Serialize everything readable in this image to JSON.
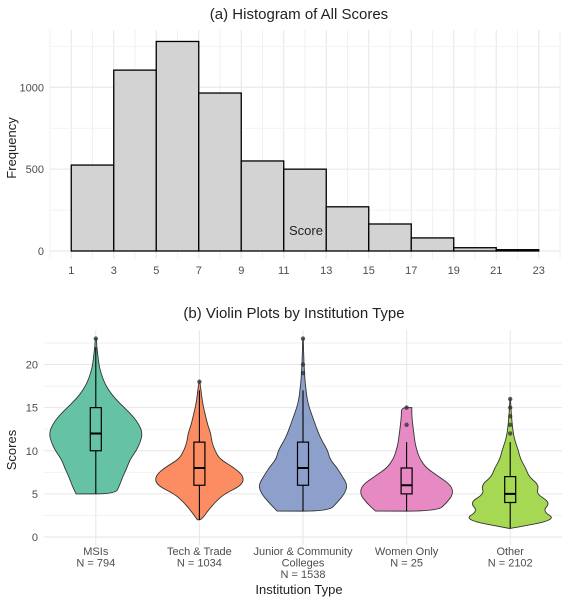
{
  "chart_data": [
    {
      "type": "bar",
      "title": "(a) Histogram of All Scores",
      "xlabel": "Score",
      "ylabel": "Frequency",
      "bin_width": 2,
      "x_ticks": [
        "1",
        "3",
        "5",
        "7",
        "9",
        "11",
        "13",
        "15",
        "17",
        "19",
        "21",
        "23"
      ],
      "y_ticks": [
        "0",
        "500",
        "1000"
      ],
      "ylim": [
        0,
        1350
      ],
      "xlim": [
        0,
        24
      ],
      "bins": [
        {
          "x0": 1,
          "x1": 3,
          "value": 525
        },
        {
          "x0": 3,
          "x1": 5,
          "value": 1105
        },
        {
          "x0": 5,
          "x1": 7,
          "value": 1280
        },
        {
          "x0": 7,
          "x1": 9,
          "value": 965
        },
        {
          "x0": 9,
          "x1": 11,
          "value": 550
        },
        {
          "x0": 11,
          "x1": 13,
          "value": 500
        },
        {
          "x0": 13,
          "x1": 15,
          "value": 270
        },
        {
          "x0": 15,
          "x1": 17,
          "value": 165
        },
        {
          "x0": 17,
          "x1": 19,
          "value": 80
        },
        {
          "x0": 19,
          "x1": 21,
          "value": 20
        },
        {
          "x0": 21,
          "x1": 23,
          "value": 8
        }
      ],
      "fill": "#d3d3d3",
      "stroke": "#000000",
      "grid": true
    },
    {
      "type": "violin",
      "title": "(b) Violin Plots by Institution Type",
      "xlabel": "Institution Type",
      "ylabel": "Scores",
      "y_ticks": [
        "0",
        "5",
        "10",
        "15",
        "20"
      ],
      "ylim": [
        0,
        24
      ],
      "grid": true,
      "categories": [
        {
          "label": [
            "MSIs",
            "N = 794"
          ],
          "color": "#66c2a5",
          "box": {
            "q1": 10,
            "median": 12,
            "q3": 15,
            "whisker_low": 5,
            "whisker_high": 22
          },
          "outliers": [
            23
          ],
          "density": [
            [
              5,
              0.38
            ],
            [
              6,
              0.46
            ],
            [
              7,
              0.52
            ],
            [
              8,
              0.6
            ],
            [
              9,
              0.66
            ],
            [
              10,
              0.78
            ],
            [
              11,
              0.86
            ],
            [
              12,
              0.9
            ],
            [
              13,
              0.84
            ],
            [
              14,
              0.72
            ],
            [
              15,
              0.55
            ],
            [
              16,
              0.38
            ],
            [
              17,
              0.25
            ],
            [
              18,
              0.16
            ],
            [
              19,
              0.1
            ],
            [
              20,
              0.06
            ],
            [
              21,
              0.04
            ],
            [
              22,
              0.02
            ],
            [
              23,
              0.01
            ]
          ]
        },
        {
          "label": [
            "Tech & Trade",
            "N = 1034"
          ],
          "color": "#fc8d62",
          "box": {
            "q1": 6,
            "median": 8,
            "q3": 11,
            "whisker_low": 2,
            "whisker_high": 17
          },
          "outliers": [
            18
          ],
          "density": [
            [
              2,
              0.04
            ],
            [
              3,
              0.16
            ],
            [
              4,
              0.3
            ],
            [
              5,
              0.48
            ],
            [
              6,
              0.82
            ],
            [
              7,
              0.86
            ],
            [
              8,
              0.68
            ],
            [
              9,
              0.4
            ],
            [
              10,
              0.3
            ],
            [
              11,
              0.24
            ],
            [
              12,
              0.22
            ],
            [
              13,
              0.16
            ],
            [
              14,
              0.12
            ],
            [
              15,
              0.08
            ],
            [
              16,
              0.05
            ],
            [
              17,
              0.03
            ],
            [
              18,
              0.01
            ]
          ]
        },
        {
          "label": [
            "Junior & Community",
            "Colleges",
            "N = 1538"
          ],
          "color": "#8da0cb",
          "box": {
            "q1": 6,
            "median": 8,
            "q3": 11,
            "whisker_low": 3,
            "whisker_high": 17
          },
          "outliers": [
            19,
            20,
            23
          ],
          "density": [
            [
              3,
              0.5
            ],
            [
              4,
              0.66
            ],
            [
              5,
              0.8
            ],
            [
              6,
              0.86
            ],
            [
              7,
              0.76
            ],
            [
              8,
              0.66
            ],
            [
              9,
              0.52
            ],
            [
              10,
              0.48
            ],
            [
              11,
              0.38
            ],
            [
              12,
              0.3
            ],
            [
              13,
              0.24
            ],
            [
              14,
              0.18
            ],
            [
              15,
              0.12
            ],
            [
              16,
              0.08
            ],
            [
              17,
              0.06
            ],
            [
              18,
              0.04
            ],
            [
              19,
              0.03
            ],
            [
              20,
              0.02
            ],
            [
              21,
              0.015
            ],
            [
              22,
              0.01
            ],
            [
              23,
              0.005
            ]
          ]
        },
        {
          "label": [
            "Women Only",
            "N = 25"
          ],
          "color": "#e78ac3",
          "box": {
            "q1": 5,
            "median": 6,
            "q3": 8,
            "whisker_low": 3,
            "whisker_high": 11
          },
          "outliers": [
            13,
            15
          ],
          "density": [
            [
              3,
              0.6
            ],
            [
              4,
              0.78
            ],
            [
              5,
              0.9
            ],
            [
              6,
              0.86
            ],
            [
              7,
              0.62
            ],
            [
              8,
              0.38
            ],
            [
              9,
              0.26
            ],
            [
              10,
              0.2
            ],
            [
              11,
              0.16
            ],
            [
              12,
              0.14
            ],
            [
              13,
              0.12
            ],
            [
              14,
              0.1
            ],
            [
              15,
              0.1
            ]
          ]
        },
        {
          "label": [
            "Other",
            "N = 2102"
          ],
          "color": "#a6d854",
          "box": {
            "q1": 4,
            "median": 5,
            "q3": 7,
            "whisker_low": 1,
            "whisker_high": 11
          },
          "outliers": [
            12,
            13,
            14,
            15,
            16
          ],
          "density": [
            [
              1,
              0.02
            ],
            [
              2,
              0.9
            ],
            [
              3,
              0.62
            ],
            [
              4,
              0.78
            ],
            [
              5,
              0.5
            ],
            [
              6,
              0.56
            ],
            [
              7,
              0.36
            ],
            [
              8,
              0.3
            ],
            [
              9,
              0.2
            ],
            [
              10,
              0.16
            ],
            [
              11,
              0.1
            ],
            [
              12,
              0.06
            ],
            [
              13,
              0.04
            ],
            [
              14,
              0.025
            ],
            [
              15,
              0.015
            ],
            [
              16,
              0.005
            ]
          ]
        }
      ]
    }
  ]
}
